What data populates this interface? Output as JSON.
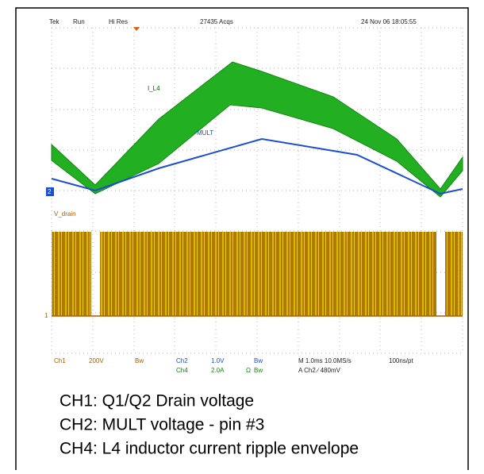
{
  "header": {
    "brand": "Tek",
    "state": "Run",
    "mode": "Hi Res",
    "acquisitions": "27435 Acqs",
    "timestamp": "24 Nov 06 18:05:55"
  },
  "traces": {
    "current": "I_L4",
    "mult": "MULT",
    "drain": "V_drain",
    "marker_ch2": "2",
    "marker_ch1": "1"
  },
  "readout": {
    "ch1": "Ch1",
    "ch1_scale": "200V",
    "ch1_bw": "Bw",
    "ch2": "Ch2",
    "ch2_scale": "1.0V",
    "ch2_bw": "Bw",
    "ch4": "Ch4",
    "ch4_scale": "2.0A",
    "ch4_ohm": "Ω",
    "ch4_bw": "Bw",
    "timebase": "M 1.0ms 10.0MS/s",
    "resolution": "100ns/pt",
    "trigger": "A Ch2 ∕ 480mV"
  },
  "captions": [
    "CH1: Q1/Q2 Drain voltage",
    "CH2: MULT voltage - pin #3",
    "CH4: L4 inductor current ripple envelope"
  ]
}
